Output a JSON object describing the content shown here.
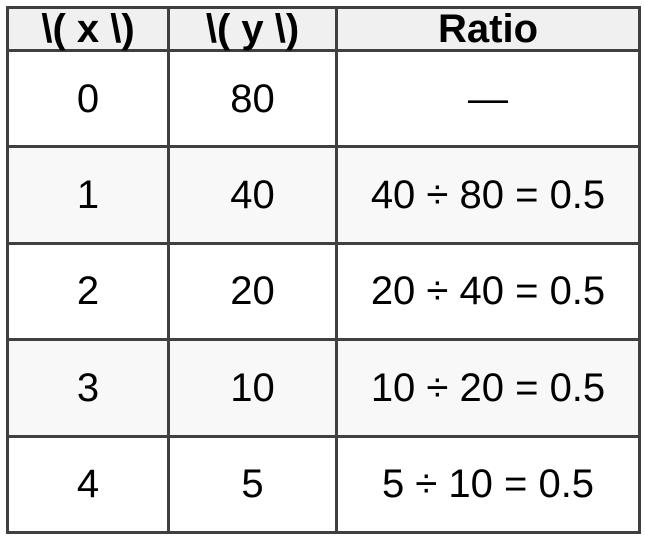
{
  "colors": {
    "border": "#404040",
    "header_background": "#f0f0f0",
    "stripe_background": "#f8f8f8",
    "text": "#000000",
    "page_background": "#ffffff"
  },
  "table": {
    "headers": {
      "x": "\\( x \\)",
      "y": "\\( y \\)",
      "ratio": "Ratio"
    },
    "rows": [
      {
        "x": "0",
        "y": "80",
        "ratio": "—"
      },
      {
        "x": "1",
        "y": "40",
        "ratio": "40 ÷ 80 = 0.5"
      },
      {
        "x": "2",
        "y": "20",
        "ratio": "20 ÷ 40 = 0.5"
      },
      {
        "x": "3",
        "y": "10",
        "ratio": "10 ÷ 20 = 0.5"
      },
      {
        "x": "4",
        "y": "5",
        "ratio": "5 ÷ 10 = 0.5"
      }
    ]
  },
  "chart_data": {
    "type": "table",
    "columns": [
      "\\( x \\)",
      "\\( y \\)",
      "Ratio"
    ],
    "x": [
      0,
      1,
      2,
      3,
      4
    ],
    "y": [
      80,
      40,
      20,
      10,
      5
    ],
    "ratio_labels": [
      "—",
      "40 ÷ 80 = 0.5",
      "20 ÷ 40 = 0.5",
      "10 ÷ 20 = 0.5",
      "5 ÷ 10 = 0.5"
    ],
    "common_ratio": 0.5
  }
}
